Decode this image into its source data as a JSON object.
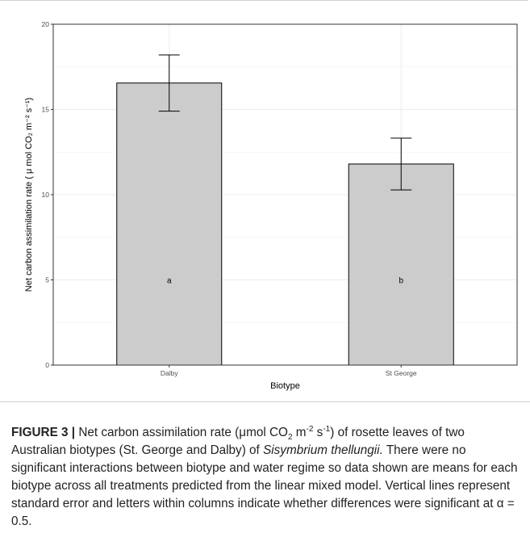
{
  "chart_data": {
    "type": "bar",
    "categories": [
      "Dalby",
      "St George"
    ],
    "values": [
      16.55,
      11.8
    ],
    "error": [
      1.65,
      1.52
    ],
    "letters": [
      "a",
      "b"
    ],
    "xlabel": "Biotype",
    "ylabel": "Net carbon assimilation rate ( μ mol CO₂ m⁻² s⁻¹)",
    "ylim": [
      0,
      20
    ],
    "yticks": [
      0,
      5,
      10,
      15,
      20
    ],
    "grid": true,
    "colors": {
      "bar": "#cccccc",
      "bar_edge": "#000000",
      "grid": "#ececec",
      "panel_border": "#333333"
    }
  },
  "caption": {
    "label": "FIGURE 3 |",
    "text_1": " Net carbon assimilation rate (",
    "mu": "μ",
    "text_2": "mol CO",
    "co2_sub": "2",
    "text_3": " m",
    "m_sup": "-2",
    "text_4": " s",
    "s_sup": "-1",
    "text_5": ") of rosette leaves of two Australian biotypes (St. George and Dalby) of ",
    "species": "Sisymbrium thellungii.",
    "text_6": " There were no significant interactions between biotype and water regime so data shown are means for each biotype across all treatments predicted from the linear mixed model. Vertical lines represent standard error and letters within columns indicate whether differences were significant at α = 0.5."
  }
}
